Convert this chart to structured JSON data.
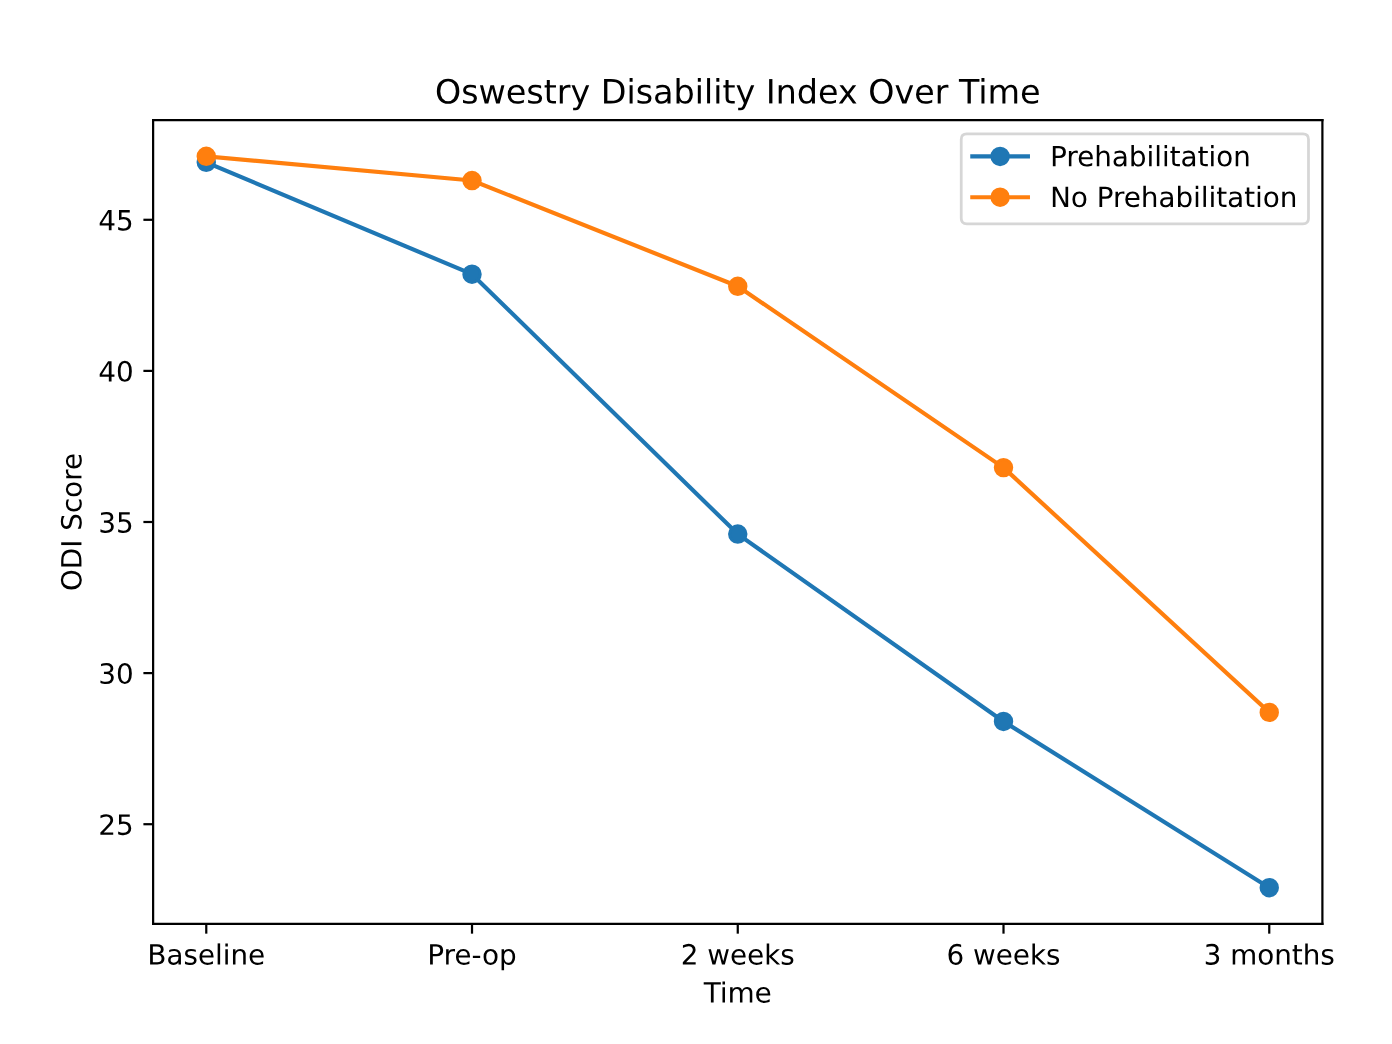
{
  "chart_data": {
    "type": "line",
    "title": "Oswestry Disability Index Over Time",
    "xlabel": "Time",
    "ylabel": "ODI Score",
    "categories": [
      "Baseline",
      "Pre-op",
      "2 weeks",
      "6 weeks",
      "3 months"
    ],
    "series": [
      {
        "name": "Prehabilitation",
        "color": "#1f77b4",
        "values": [
          46.9,
          43.2,
          34.6,
          28.4,
          22.9
        ]
      },
      {
        "name": "No Prehabilitation",
        "color": "#ff7f0e",
        "values": [
          47.1,
          46.3,
          42.8,
          36.8,
          28.7
        ]
      }
    ],
    "ylim": [
      21.7,
      48.3
    ],
    "yticks": [
      25,
      30,
      35,
      40,
      45
    ],
    "grid": false,
    "legend": "top right",
    "marker": "circle",
    "line_style": "solid"
  }
}
